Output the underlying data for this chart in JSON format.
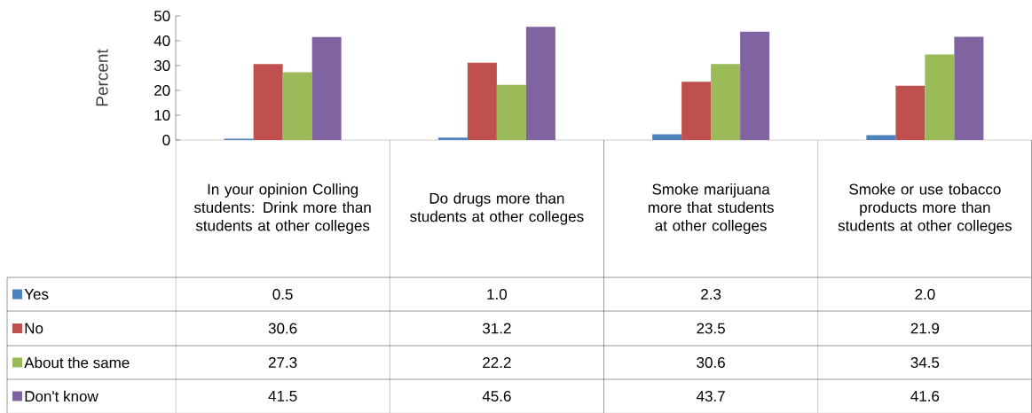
{
  "chart_data": {
    "type": "bar",
    "ylabel": "Percent",
    "categories": [
      "In your opinion Colling students: Drink more than students at other colleges",
      "Do drugs more than students at other colleges",
      "Smoke marijuana more that students at other colleges",
      "Smoke or use tobacco products more than students at other colleges"
    ],
    "series": [
      {
        "name": "Yes",
        "color": "#4f81bd",
        "values": [
          0.5,
          1.0,
          2.3,
          2.0
        ],
        "value_labels": [
          "0.5",
          "1.0",
          "2.3",
          "2.0"
        ]
      },
      {
        "name": "No",
        "color": "#c0504d",
        "values": [
          30.6,
          31.2,
          23.5,
          21.9
        ],
        "value_labels": [
          "30.6",
          "31.2",
          "23.5",
          "21.9"
        ]
      },
      {
        "name": "About the same",
        "color": "#9bbb59",
        "values": [
          27.3,
          22.2,
          30.6,
          34.5
        ],
        "value_labels": [
          "27.3",
          "22.2",
          "30.6",
          "34.5"
        ]
      },
      {
        "name": "Don't know",
        "color": "#8064a2",
        "values": [
          41.5,
          45.6,
          43.7,
          41.6
        ],
        "value_labels": [
          "41.5",
          "45.6",
          "43.7",
          "41.6"
        ]
      }
    ],
    "ylim": [
      0,
      50
    ],
    "yticks": [
      0,
      10,
      20,
      30,
      40,
      50
    ],
    "legend": "bottom left",
    "grid": false
  }
}
